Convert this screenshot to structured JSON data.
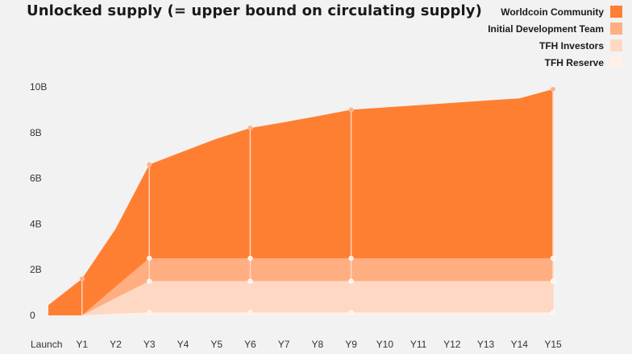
{
  "chart_data": {
    "type": "area",
    "stacked": true,
    "title": "Unlocked supply (= upper bound on circulating supply)",
    "x": [
      "Launch",
      "Y1",
      "Y2",
      "Y3",
      "Y4",
      "Y5",
      "Y6",
      "Y7",
      "Y8",
      "Y9",
      "Y10",
      "Y11",
      "Y12",
      "Y13",
      "Y14",
      "Y15"
    ],
    "y_ticks": [
      "0",
      "2B",
      "4B",
      "6B",
      "8B",
      "10B"
    ],
    "ylim": [
      0,
      10
    ],
    "y_unit": "billion",
    "legend_position": "top-right",
    "marker_x_indices": [
      1,
      3,
      6,
      9,
      15
    ],
    "series": [
      {
        "name": "TFH Reserve",
        "color": "#fff0e8",
        "values": [
          0,
          0,
          0.07,
          0.13,
          0.13,
          0.13,
          0.13,
          0.13,
          0.13,
          0.13,
          0.13,
          0.13,
          0.13,
          0.13,
          0.13,
          0.13
        ]
      },
      {
        "name": "TFH Investors",
        "color": "#ffd8c3",
        "values": [
          0,
          0,
          0.69,
          1.37,
          1.37,
          1.37,
          1.37,
          1.37,
          1.37,
          1.37,
          1.37,
          1.37,
          1.37,
          1.37,
          1.37,
          1.37
        ]
      },
      {
        "name": "Initial Development Team",
        "color": "#ffae82",
        "values": [
          0,
          0,
          0.5,
          1.0,
          1.0,
          1.0,
          1.0,
          1.0,
          1.0,
          1.0,
          1.0,
          1.0,
          1.0,
          1.0,
          1.0,
          1.0
        ]
      },
      {
        "name": "Worldcoin Community",
        "color": "#ff7f32",
        "values": [
          0.45,
          1.6,
          2.53,
          4.1,
          4.67,
          5.23,
          5.7,
          5.95,
          6.22,
          6.5,
          6.6,
          6.7,
          6.8,
          6.9,
          7.0,
          7.4
        ]
      }
    ]
  }
}
